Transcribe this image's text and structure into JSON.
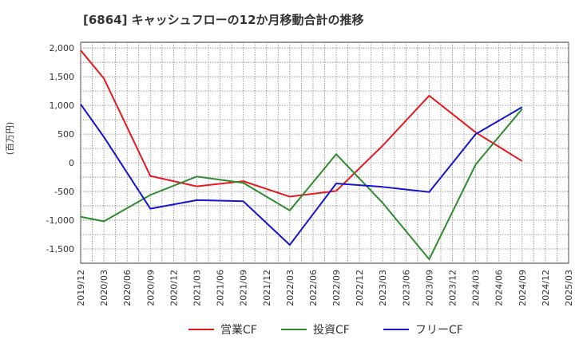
{
  "chart_data": {
    "type": "line",
    "title": "[6864]  キャッシュフローの12か月移動合計の推移",
    "ylabel": "(百万円)",
    "xlabel": "",
    "ylim": [
      -1750,
      2100
    ],
    "yticks": [
      2000,
      1500,
      1000,
      500,
      0,
      -500,
      -1000,
      -1500
    ],
    "ytick_labels": [
      "2,000",
      "1,500",
      "1,000",
      "500",
      "0",
      "-500",
      "-1,000",
      "-1,500"
    ],
    "categories": [
      "2019/12",
      "2020/03",
      "2020/06",
      "2020/09",
      "2020/12",
      "2021/03",
      "2021/06",
      "2021/09",
      "2021/12",
      "2022/03",
      "2022/06",
      "2022/09",
      "2022/12",
      "2023/03",
      "2023/06",
      "2023/09",
      "2023/12",
      "2024/03",
      "2024/06",
      "2024/09",
      "2024/12",
      "2025/03"
    ],
    "series": [
      {
        "name": "営業CF",
        "color": "#e8191e",
        "values": [
          1960,
          1470,
          null,
          -230,
          null,
          -410,
          null,
          -320,
          null,
          -590,
          null,
          -490,
          null,
          300,
          null,
          1170,
          null,
          530,
          null,
          30,
          null,
          null
        ]
      },
      {
        "name": "投資CF",
        "color": "#2e8b2e",
        "values": [
          -940,
          -1020,
          null,
          -560,
          null,
          -240,
          null,
          -350,
          null,
          -830,
          null,
          150,
          null,
          -700,
          null,
          -1680,
          null,
          -30,
          null,
          940,
          null,
          null
        ]
      },
      {
        "name": "フリーCF",
        "color": "#1414d2",
        "values": [
          1020,
          450,
          null,
          -800,
          null,
          -650,
          null,
          -670,
          null,
          -1430,
          null,
          -360,
          null,
          -420,
          null,
          -510,
          null,
          500,
          null,
          970,
          null,
          null
        ]
      }
    ],
    "legend_position": "bottom",
    "grid": true
  }
}
